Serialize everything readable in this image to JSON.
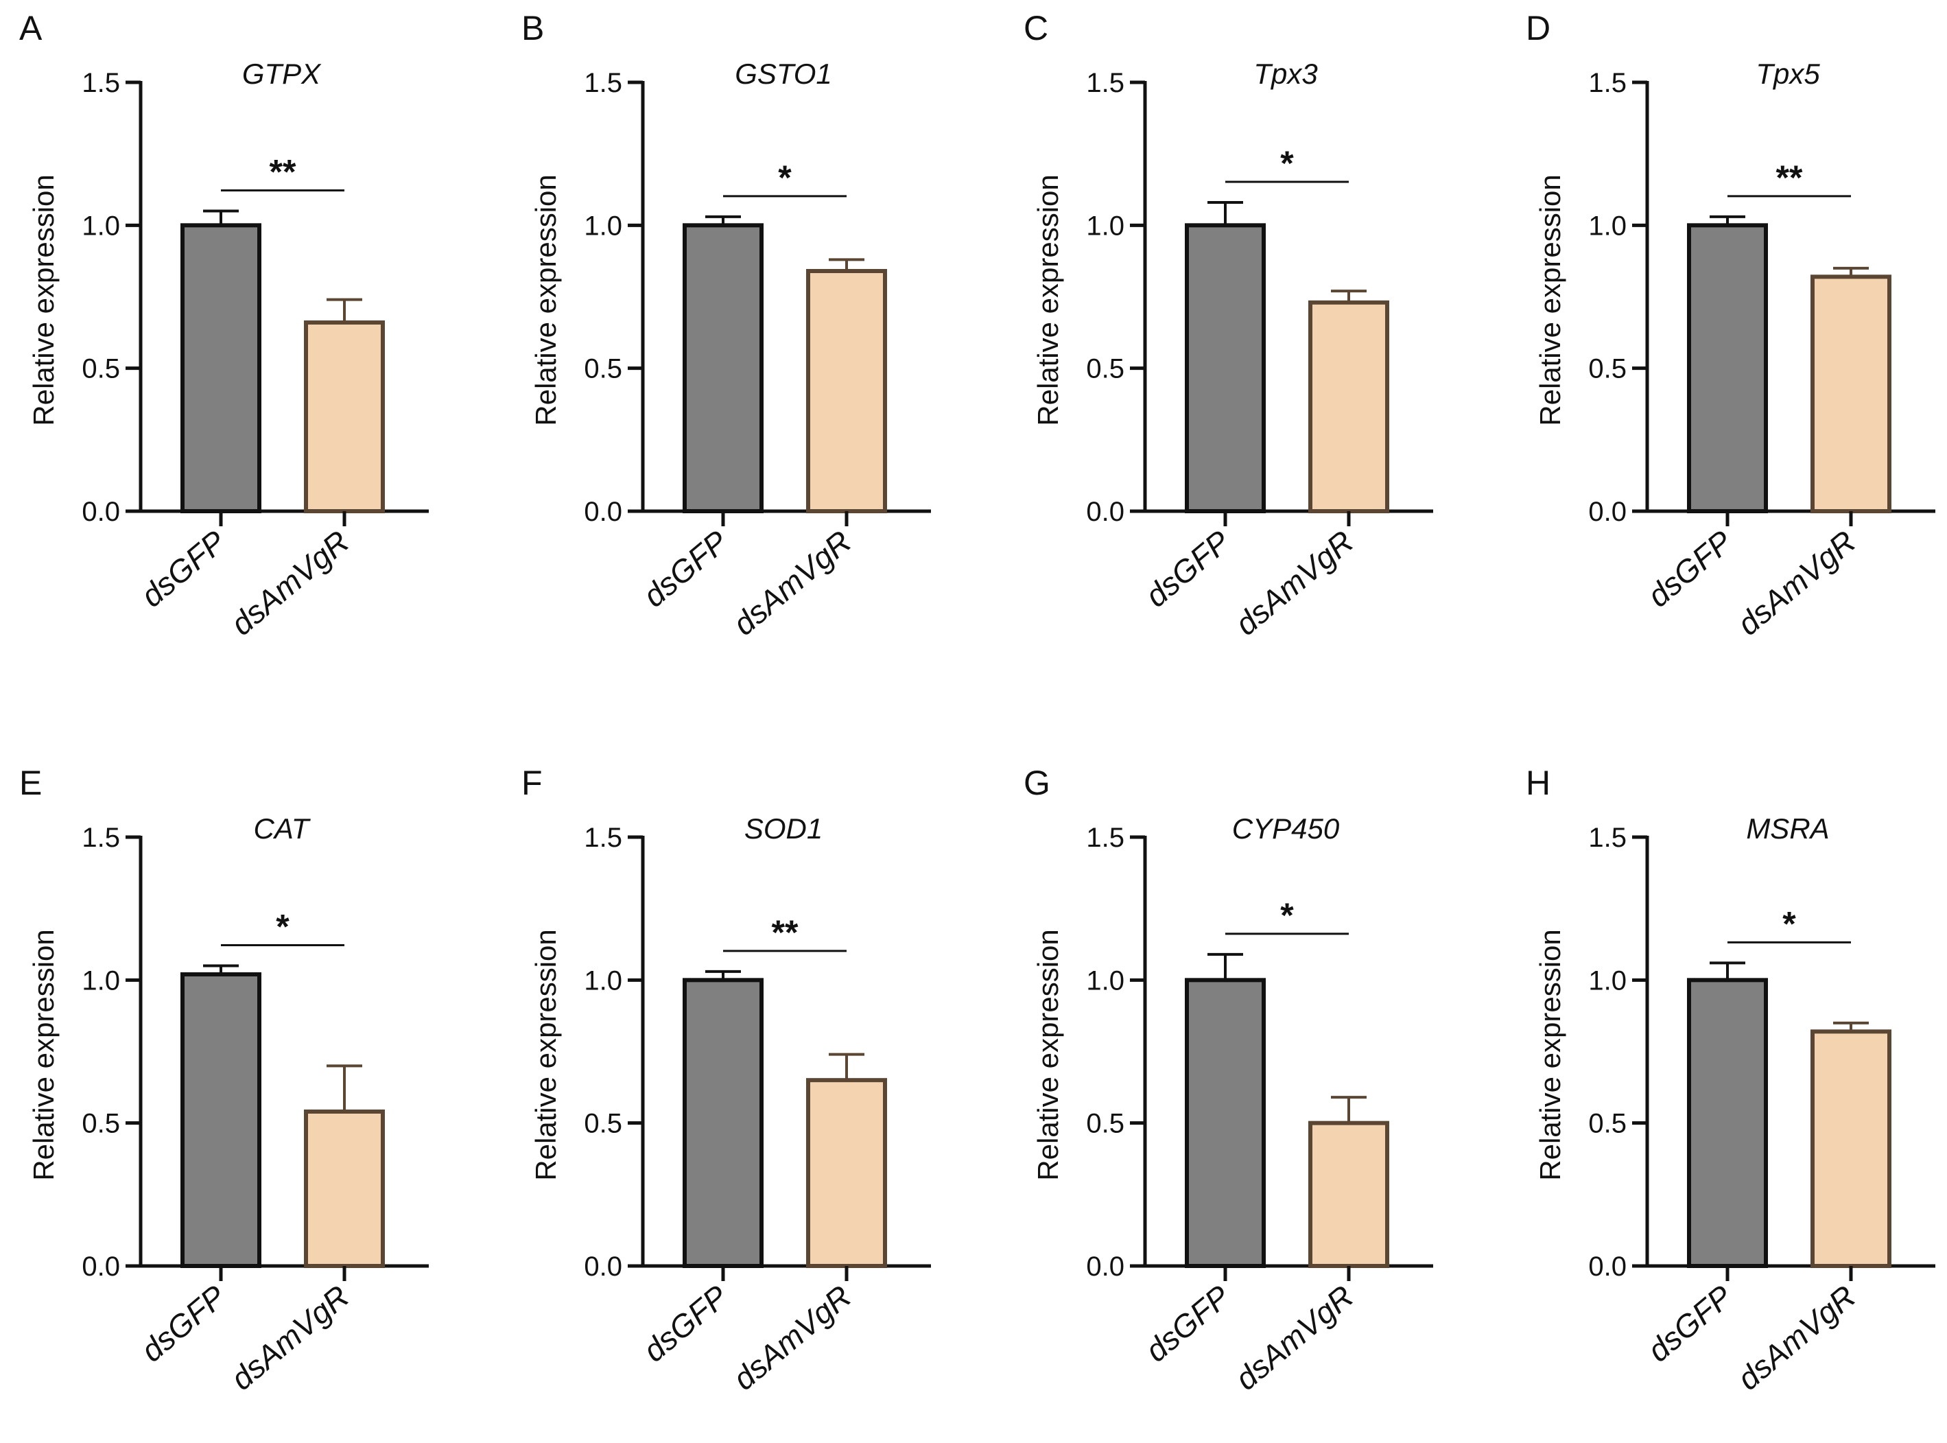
{
  "chart_data": [
    {
      "panel": "A",
      "title": "GTPX",
      "type": "bar",
      "categories": [
        "dsGFP",
        "dsAmVgR"
      ],
      "values": [
        1.0,
        0.66
      ],
      "errors": [
        0.05,
        0.08
      ],
      "significance": "**",
      "ylabel": "Relative expression",
      "ylim": [
        0,
        1.5
      ],
      "yticks": [
        "0.0",
        "0.5",
        "1.0",
        "1.5"
      ]
    },
    {
      "panel": "B",
      "title": "GSTO1",
      "type": "bar",
      "categories": [
        "dsGFP",
        "dsAmVgR"
      ],
      "values": [
        1.0,
        0.84
      ],
      "errors": [
        0.03,
        0.04
      ],
      "significance": "*",
      "ylabel": "Relative expression",
      "ylim": [
        0,
        1.5
      ],
      "yticks": [
        "0.0",
        "0.5",
        "1.0",
        "1.5"
      ]
    },
    {
      "panel": "C",
      "title": "Tpx3",
      "type": "bar",
      "categories": [
        "dsGFP",
        "dsAmVgR"
      ],
      "values": [
        1.0,
        0.73
      ],
      "errors": [
        0.08,
        0.04
      ],
      "significance": "*",
      "ylabel": "Relative expression",
      "ylim": [
        0,
        1.5
      ],
      "yticks": [
        "0.0",
        "0.5",
        "1.0",
        "1.5"
      ]
    },
    {
      "panel": "D",
      "title": "Tpx5",
      "type": "bar",
      "categories": [
        "dsGFP",
        "dsAmVgR"
      ],
      "values": [
        1.0,
        0.82
      ],
      "errors": [
        0.03,
        0.03
      ],
      "significance": "**",
      "ylabel": "Relative expression",
      "ylim": [
        0,
        1.5
      ],
      "yticks": [
        "0.0",
        "0.5",
        "1.0",
        "1.5"
      ]
    },
    {
      "panel": "E",
      "title": "CAT",
      "type": "bar",
      "categories": [
        "dsGFP",
        "dsAmVgR"
      ],
      "values": [
        1.02,
        0.54
      ],
      "errors": [
        0.03,
        0.16
      ],
      "significance": "*",
      "ylabel": "Relative expression",
      "ylim": [
        0,
        1.5
      ],
      "yticks": [
        "0.0",
        "0.5",
        "1.0",
        "1.5"
      ]
    },
    {
      "panel": "F",
      "title": "SOD1",
      "type": "bar",
      "categories": [
        "dsGFP",
        "dsAmVgR"
      ],
      "values": [
        1.0,
        0.65
      ],
      "errors": [
        0.03,
        0.09
      ],
      "significance": "**",
      "ylabel": "Relative expression",
      "ylim": [
        0,
        1.5
      ],
      "yticks": [
        "0.0",
        "0.5",
        "1.0",
        "1.5"
      ]
    },
    {
      "panel": "G",
      "title": "CYP450",
      "type": "bar",
      "categories": [
        "dsGFP",
        "dsAmVgR"
      ],
      "values": [
        1.0,
        0.5
      ],
      "errors": [
        0.09,
        0.09
      ],
      "significance": "*",
      "ylabel": "Relative expression",
      "ylim": [
        0,
        1.5
      ],
      "yticks": [
        "0.0",
        "0.5",
        "1.0",
        "1.5"
      ]
    },
    {
      "panel": "H",
      "title": "MSRA",
      "type": "bar",
      "categories": [
        "dsGFP",
        "dsAmVgR"
      ],
      "values": [
        1.0,
        0.82
      ],
      "errors": [
        0.06,
        0.03
      ],
      "significance": "*",
      "ylabel": "Relative expression",
      "ylim": [
        0,
        1.5
      ],
      "yticks": [
        "0.0",
        "0.5",
        "1.0",
        "1.5"
      ]
    }
  ],
  "colors": {
    "dsGFP": "#808080",
    "dsAmVgR": "#F3D3B0",
    "edge_dsGFP": "#111111",
    "edge_dsAmVgR": "#5A4632",
    "axis": "#111111"
  }
}
